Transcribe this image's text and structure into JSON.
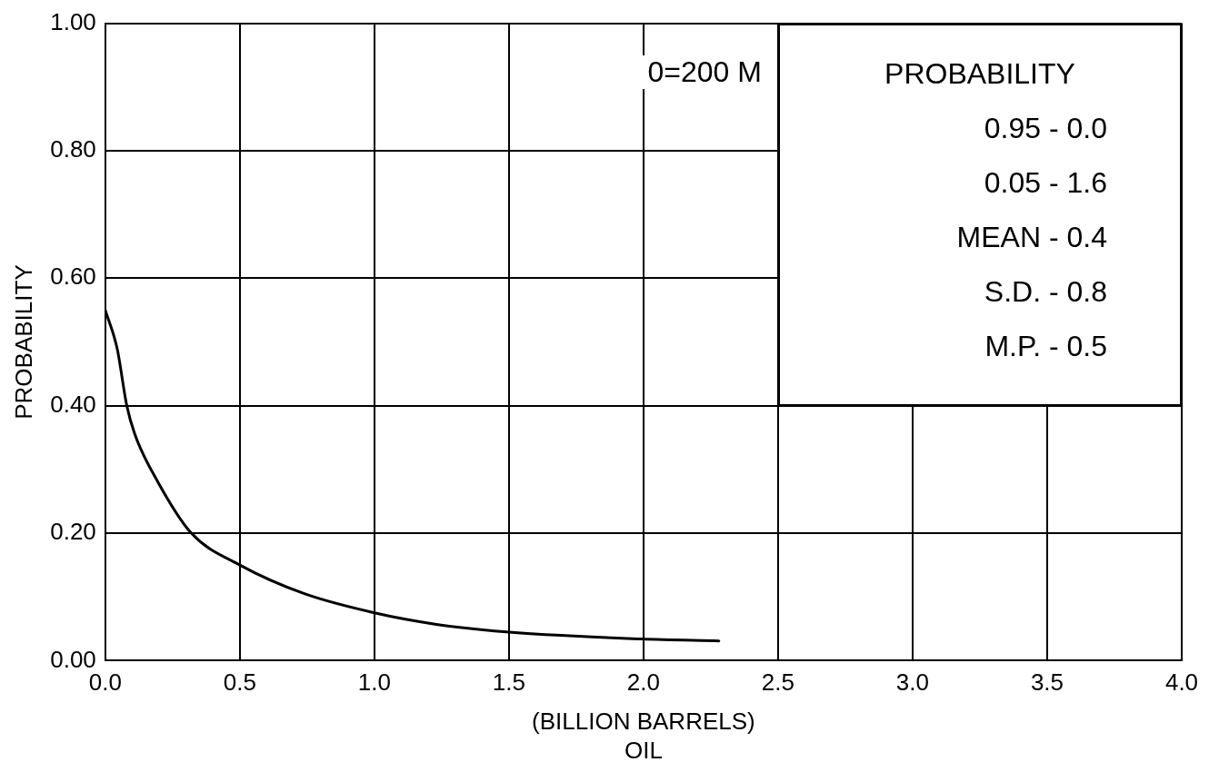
{
  "chart_data": {
    "type": "line",
    "xlabel": "(BILLION BARRELS)\nOIL",
    "ylabel": "PROBABILITY",
    "series": [
      {
        "color": "#000000",
        "x": [
          0,
          0.044,
          0.08,
          0.11,
          0.196,
          0.32,
          0.5,
          0.74,
          1.0,
          1.23,
          1.49,
          1.99,
          2.28
        ],
        "values": [
          0.55,
          0.49,
          0.4,
          0.355,
          0.28,
          0.2,
          0.15,
          0.105,
          0.075,
          0.057,
          0.045,
          0.034,
          0.031
        ]
      }
    ],
    "xlim": [
      0,
      4
    ],
    "xticks": [
      {
        "value": 0,
        "label": "0.0"
      },
      {
        "value": 0.5,
        "label": "0.5"
      },
      {
        "value": 1,
        "label": "1.0"
      },
      {
        "value": 1.5,
        "label": "1.5"
      },
      {
        "value": 2,
        "label": "2.0"
      },
      {
        "value": 2.5,
        "label": "2.5"
      },
      {
        "value": 3,
        "label": "3.0"
      },
      {
        "value": 3.5,
        "label": "3.5"
      },
      {
        "value": 4,
        "label": "4.0"
      }
    ],
    "ylim": [
      0,
      1
    ],
    "yticks": [
      {
        "value": 0,
        "label": "0.00"
      },
      {
        "value": 0.2,
        "label": "0.20"
      },
      {
        "value": 0.4,
        "label": "0.40"
      },
      {
        "value": 0.6,
        "label": "0.60"
      },
      {
        "value": 0.8,
        "label": "0.80"
      },
      {
        "value": 1,
        "label": "1.00"
      }
    ],
    "grid": true,
    "marker": "none",
    "line_style": "solid",
    "legend": false,
    "annotations": [
      "0=200 M",
      "PROBABILITY",
      "0.95 - 0.0",
      "0.05 - 1.6",
      "MEAN - 0.4",
      "S.D. - 0.8",
      "M.P. - 0.5"
    ]
  }
}
